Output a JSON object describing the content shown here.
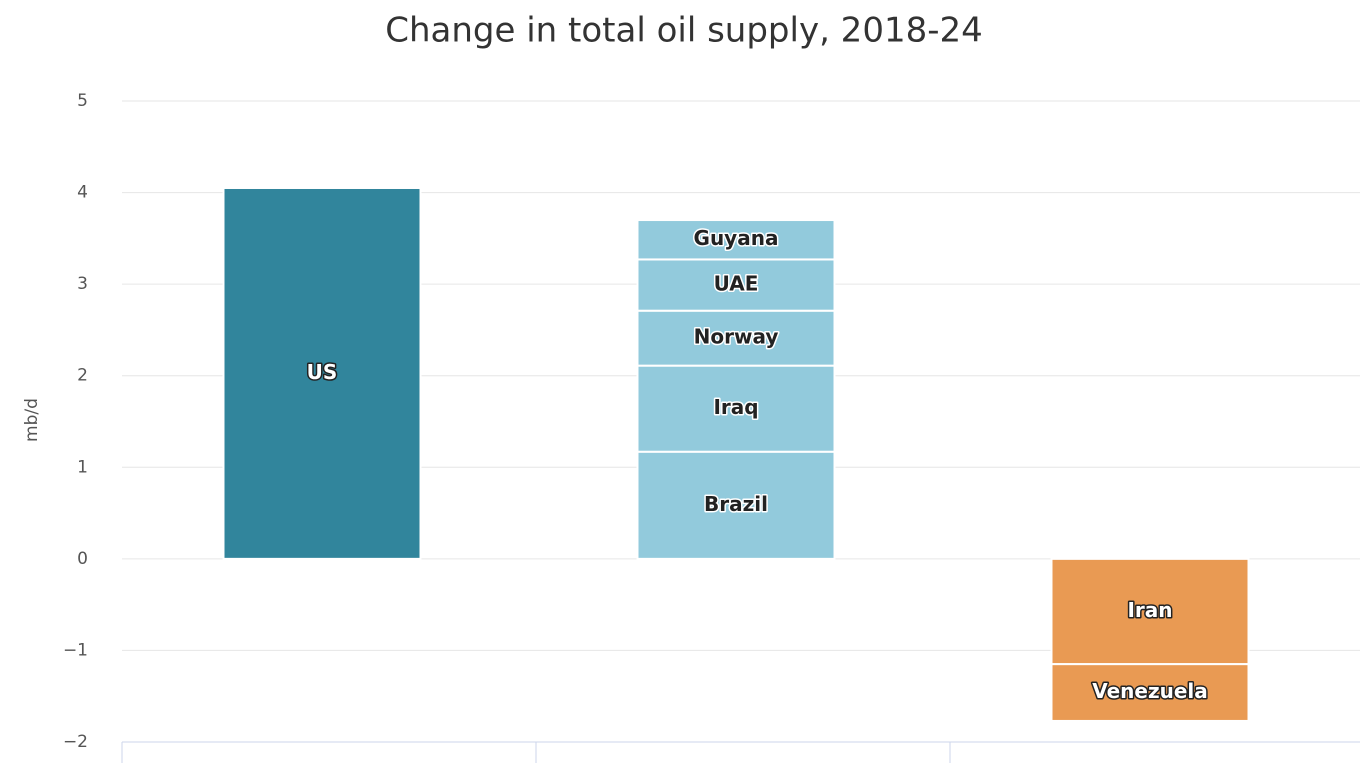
{
  "chart_data": {
    "type": "stacked_bar",
    "title": "Change in total oil supply, 2018-24",
    "y_label": "mb/d",
    "categories": [
      null,
      null,
      null
    ],
    "series": [
      {
        "name": "US",
        "color": "#31859c",
        "values": [
          4.05,
          null,
          null
        ]
      },
      {
        "name": "Brazil",
        "color": "#92cadc",
        "values": [
          null,
          1.17,
          null
        ]
      },
      {
        "name": "Iraq",
        "color": "#92cadc",
        "values": [
          null,
          0.94,
          null
        ]
      },
      {
        "name": "Norway",
        "color": "#92cadc",
        "values": [
          null,
          0.6,
          null
        ]
      },
      {
        "name": "UAE",
        "color": "#92cadc",
        "values": [
          null,
          0.56,
          null
        ]
      },
      {
        "name": "Guyana",
        "color": "#92cadc",
        "values": [
          null,
          0.43,
          null
        ]
      },
      {
        "name": "Iran",
        "color": "#e99a53",
        "values": [
          null,
          null,
          -1.15
        ]
      },
      {
        "name": "Venezuela",
        "color": "#e99a53",
        "values": [
          null,
          null,
          -0.62
        ]
      }
    ],
    "ylim": [
      -2,
      5
    ],
    "yticks": [
      {
        "value": -2,
        "label": "−2"
      },
      {
        "value": -1,
        "label": "−1"
      },
      0,
      1,
      2,
      3,
      4,
      5
    ],
    "grid": true
  }
}
